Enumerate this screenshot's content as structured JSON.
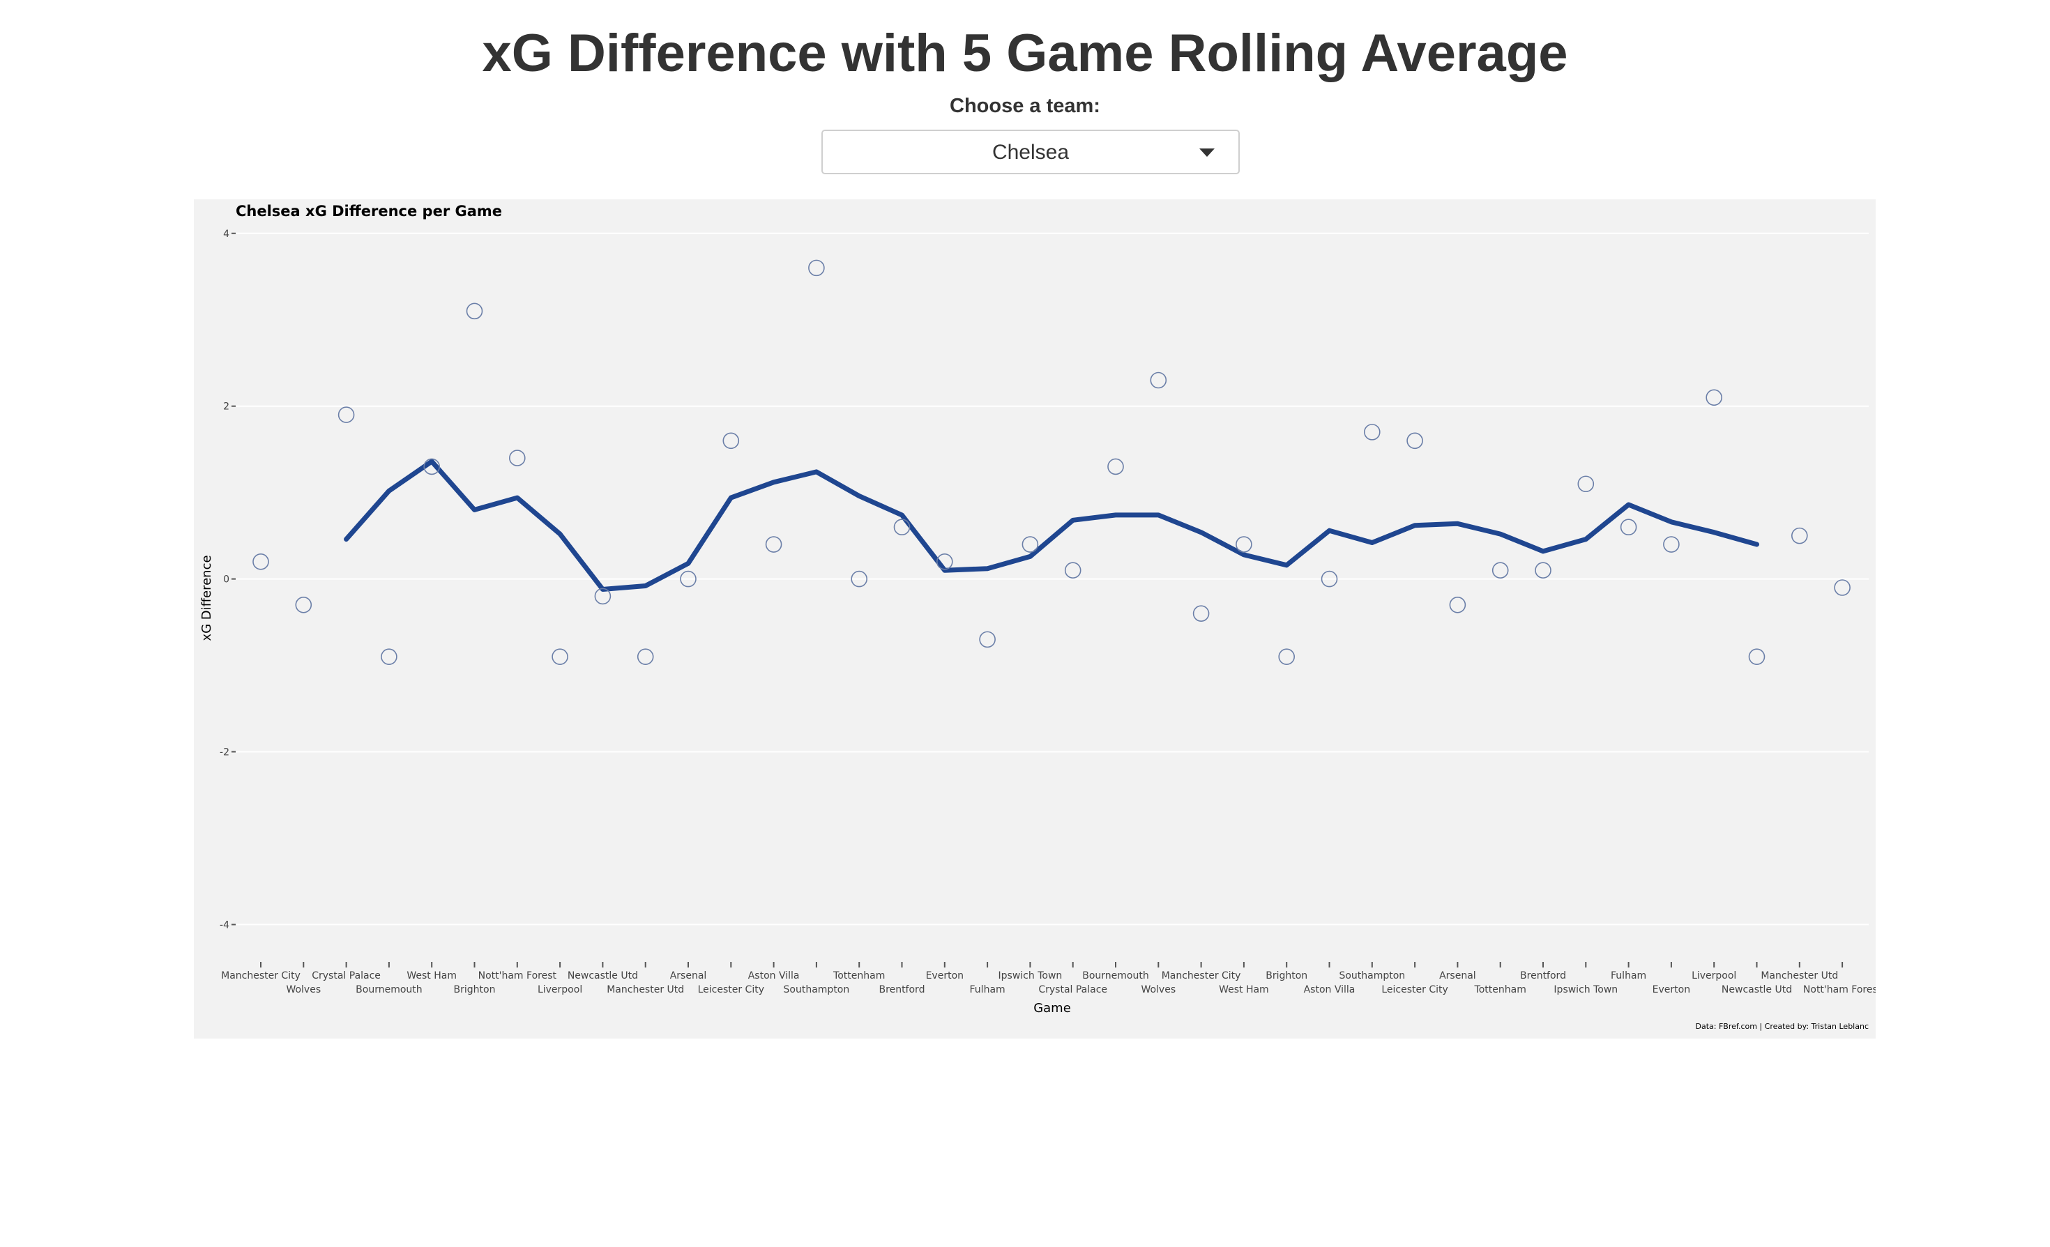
{
  "page": {
    "title": "xG Difference with 5 Game Rolling Average",
    "select_label": "Choose a team:",
    "selected_team": "Chelsea"
  },
  "colors": {
    "rolling_line": "#1f4690",
    "points": "#6b7fa8",
    "panel_background": "#f2f2f2",
    "gridline": "#ffffff"
  },
  "chart_data": {
    "type": "line",
    "title": "Chelsea xG Difference per Game",
    "xlabel": "Game",
    "ylabel": "xG Difference",
    "caption": "Data: FBref.com | Created by: Tristan Leblanc",
    "ylim": [
      -4.4,
      4.2
    ],
    "yticks": [
      -4,
      -2,
      0,
      2,
      4
    ],
    "grid": true,
    "legend": "none",
    "categories": [
      "Manchester City",
      "Wolves",
      "Crystal Palace",
      "Bournemouth",
      "West Ham",
      "Brighton",
      "Nott'ham Forest",
      "Liverpool",
      "Newcastle Utd",
      "Manchester Utd",
      "Arsenal",
      "Leicester City",
      "Aston Villa",
      "Southampton",
      "Tottenham",
      "Brentford",
      "Everton",
      "Fulham",
      "Ipswich Town",
      "Crystal Palace",
      "Bournemouth",
      "Wolves",
      "Manchester City",
      "West Ham",
      "Brighton",
      "Aston Villa",
      "Southampton",
      "Leicester City",
      "Arsenal",
      "Tottenham",
      "Brentford",
      "Ipswich Town",
      "Fulham",
      "Everton",
      "Liverpool",
      "Newcastle Utd",
      "Manchester Utd",
      "Nott'ham Forest"
    ],
    "series": [
      {
        "name": "",
        "type": "scatter",
        "values": [
          0.2,
          -0.3,
          1.9,
          -0.9,
          1.3,
          3.1,
          1.4,
          -0.9,
          -0.2,
          -0.9,
          0.0,
          1.6,
          0.4,
          3.6,
          0.0,
          0.6,
          0.2,
          -0.7,
          0.4,
          0.1,
          1.3,
          2.3,
          -0.4,
          0.4,
          -0.9,
          0.0,
          1.7,
          1.6,
          -0.3,
          0.1,
          0.1,
          1.1,
          0.6,
          0.4,
          2.1,
          -0.9,
          0.5,
          -0.1
        ]
      },
      {
        "name": "",
        "type": "line",
        "values": [
          null,
          null,
          0.46,
          1.02,
          1.36,
          0.8,
          0.94,
          0.52,
          -0.12,
          -0.08,
          0.18,
          0.94,
          1.12,
          1.24,
          0.96,
          0.74,
          0.1,
          0.12,
          0.26,
          0.68,
          0.74,
          0.74,
          0.54,
          0.28,
          0.16,
          0.56,
          0.42,
          0.62,
          0.64,
          0.52,
          0.32,
          0.46,
          0.86,
          0.66,
          0.54,
          0.4,
          null,
          null
        ]
      }
    ]
  }
}
